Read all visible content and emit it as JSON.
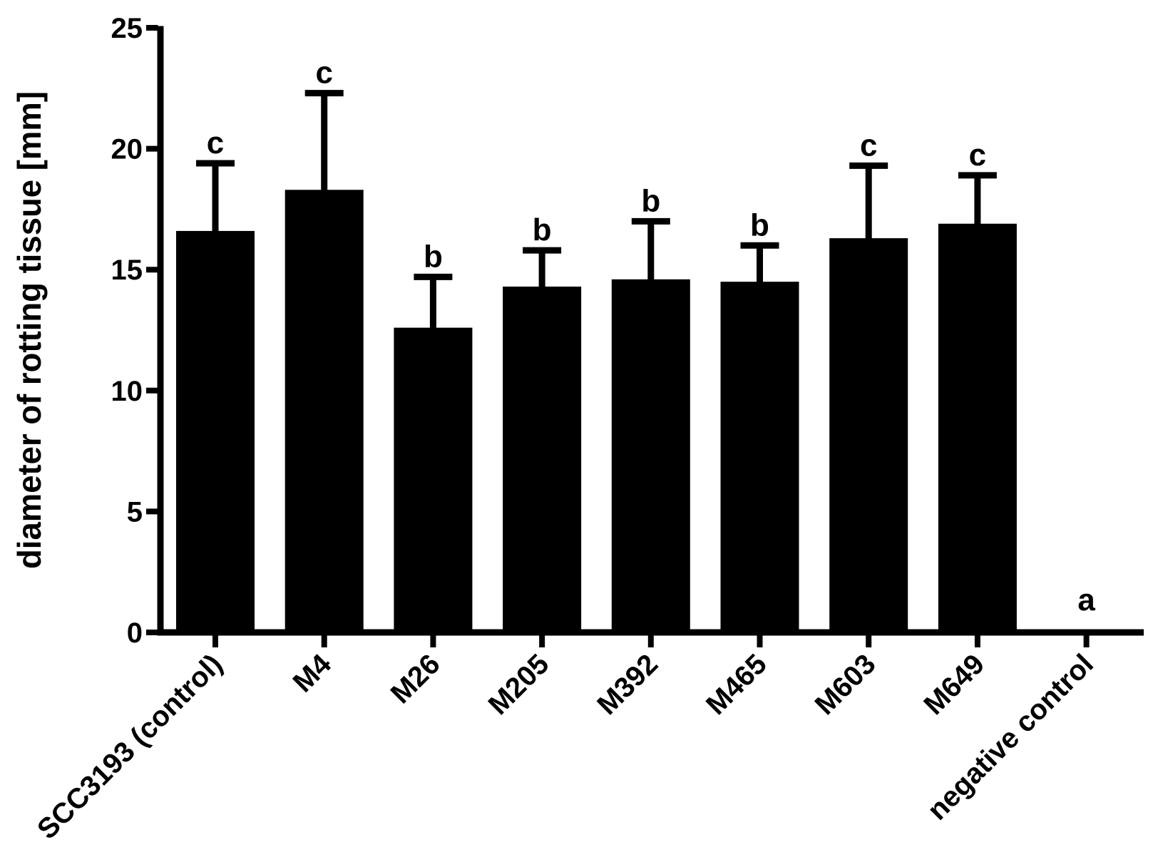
{
  "figure": {
    "background_color": "#ffffff",
    "ink_color": "#000000"
  },
  "chart_data": {
    "type": "bar",
    "title": "",
    "xlabel": "",
    "ylabel": "diameter of rotting tissue [mm]",
    "ylim": [
      0,
      25
    ],
    "yticks": [
      0,
      5,
      10,
      15,
      20,
      25
    ],
    "grid": false,
    "legend_position": "none",
    "bar_color": "#000000",
    "error_bar_style": "upper standard deviation whisker with cap",
    "categories": [
      "SCC3193 (control)",
      "M4",
      "M26",
      "M205",
      "M392",
      "M465",
      "M603",
      "M649",
      "negative control"
    ],
    "values": [
      16.6,
      18.3,
      12.6,
      14.3,
      14.6,
      14.5,
      16.3,
      16.9,
      0
    ],
    "error_sd": [
      2.8,
      4.0,
      2.1,
      1.5,
      2.4,
      1.5,
      3.0,
      2.0,
      0
    ],
    "significance_letters": [
      "c",
      "c",
      "b",
      "b",
      "b",
      "b",
      "c",
      "c",
      "a"
    ]
  }
}
